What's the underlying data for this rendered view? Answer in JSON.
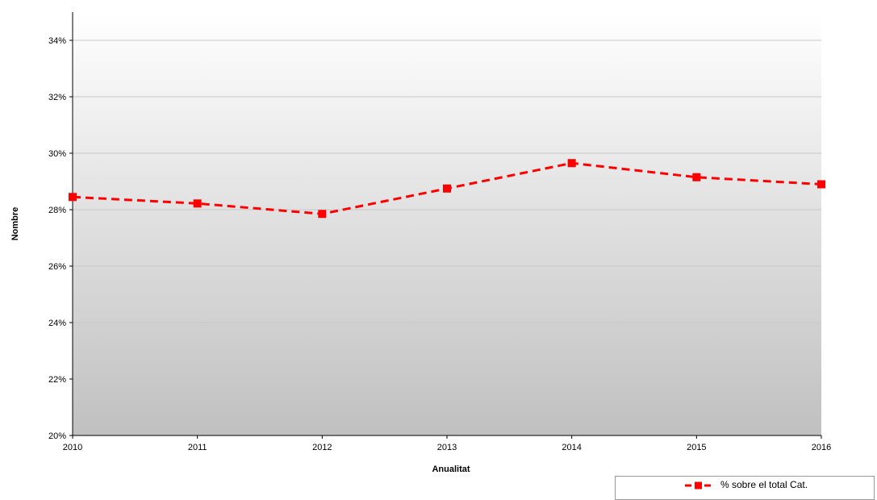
{
  "chart_data": {
    "type": "line",
    "x": [
      "2010",
      "2011",
      "2012",
      "2013",
      "2014",
      "2015",
      "2016"
    ],
    "series": [
      {
        "name": "% sobre el total Cat.",
        "values": [
          28.45,
          28.22,
          27.85,
          28.75,
          29.65,
          29.15,
          28.9
        ],
        "color": "#ff0000",
        "line_style": "dashed",
        "marker": "square"
      }
    ],
    "xlabel": "Anualitat",
    "ylabel": "Nombre",
    "ylim": [
      20,
      35
    ],
    "yticks": [
      20,
      22,
      24,
      26,
      28,
      30,
      32,
      34
    ],
    "ytick_labels": [
      "20%",
      "22%",
      "24%",
      "26%",
      "28%",
      "30%",
      "32%",
      "34%"
    ],
    "grid": true,
    "background_gradient": [
      "#ffffff",
      "#c0c0c0"
    ],
    "legend_position": "bottom-right"
  }
}
